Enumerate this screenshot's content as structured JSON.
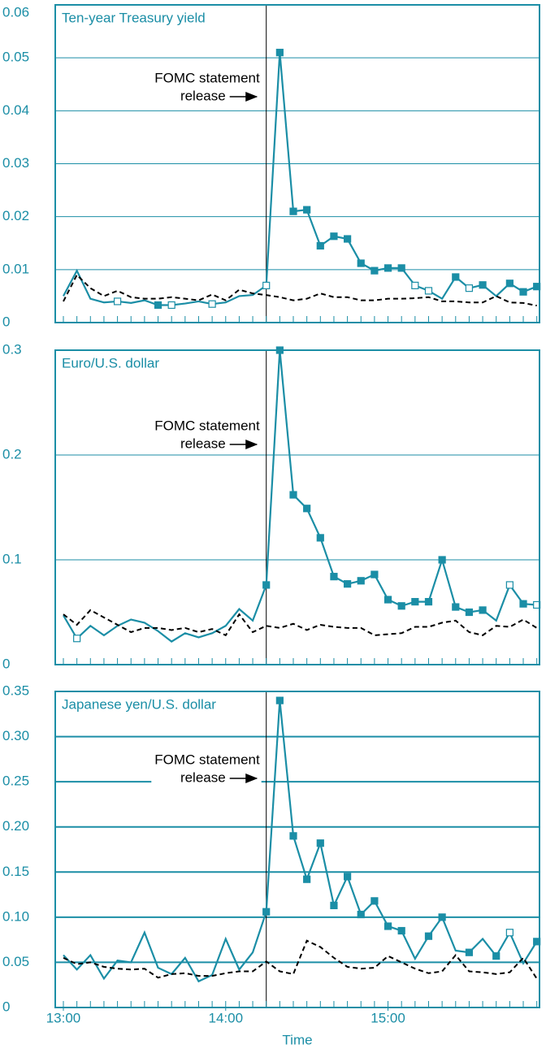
{
  "chart_data": [
    {
      "type": "line",
      "title": "Ten-year Treasury yield",
      "x": [
        "13:00",
        "13:05",
        "13:10",
        "13:15",
        "13:20",
        "13:25",
        "13:30",
        "13:35",
        "13:40",
        "13:45",
        "13:50",
        "13:55",
        "14:00",
        "14:05",
        "14:10",
        "14:15",
        "14:20",
        "14:25",
        "14:30",
        "14:35",
        "14:40",
        "14:45",
        "14:50",
        "14:55",
        "15:00",
        "15:05",
        "15:10",
        "15:15",
        "15:20",
        "15:25",
        "15:30",
        "15:35",
        "15:40",
        "15:45",
        "15:50",
        "15:55"
      ],
      "series": [
        {
          "color": "#1b8ea6",
          "values": [
            0.005,
            0.0098,
            0.0045,
            0.0038,
            0.004,
            0.0037,
            0.0042,
            0.0033,
            0.0033,
            0.0036,
            0.004,
            0.0035,
            0.0038,
            0.005,
            0.0052,
            0.007,
            0.051,
            0.021,
            0.0213,
            0.0145,
            0.0163,
            0.0158,
            0.0112,
            0.0098,
            0.0103,
            0.0103,
            0.007,
            0.006,
            0.0045,
            0.0086,
            0.0065,
            0.0071,
            0.005,
            0.0074,
            0.0058,
            0.0068
          ],
          "markers": [
            null,
            null,
            null,
            null,
            "hollow",
            null,
            null,
            "filled",
            "hollow",
            null,
            null,
            "hollow",
            null,
            null,
            null,
            "hollow",
            "filled",
            "filled",
            "filled",
            "filled",
            "filled",
            "filled",
            "filled",
            "filled",
            "filled",
            "filled",
            "hollow",
            "hollow",
            null,
            "filled",
            "hollow",
            "filled",
            null,
            "filled",
            "filled",
            "filled"
          ]
        },
        {
          "color": "#000000",
          "dashed": true,
          "values": [
            0.004,
            0.009,
            0.0065,
            0.005,
            0.006,
            0.0048,
            0.0045,
            0.0045,
            0.0048,
            0.0045,
            0.0042,
            0.0053,
            0.0042,
            0.0062,
            0.0055,
            0.0052,
            0.0048,
            0.0042,
            0.0045,
            0.0055,
            0.0048,
            0.0048,
            0.0042,
            0.0042,
            0.0045,
            0.0045,
            0.0046,
            0.0048,
            0.004,
            0.004,
            0.0038,
            0.0038,
            0.005,
            0.0038,
            0.0037,
            0.0032
          ]
        }
      ],
      "xlim": [
        "12:57",
        "15:56"
      ],
      "ylim": [
        0,
        0.06
      ],
      "yticks": [
        0,
        0.01,
        0.02,
        0.03,
        0.04,
        0.05,
        0.06
      ],
      "grid": true,
      "event_x": "14:15",
      "annotation": [
        "FOMC statement",
        "release"
      ]
    },
    {
      "type": "line",
      "title": "Euro/U.S. dollar",
      "x": [
        "13:00",
        "13:05",
        "13:10",
        "13:15",
        "13:20",
        "13:25",
        "13:30",
        "13:35",
        "13:40",
        "13:45",
        "13:50",
        "13:55",
        "14:00",
        "14:05",
        "14:10",
        "14:15",
        "14:20",
        "14:25",
        "14:30",
        "14:35",
        "14:40",
        "14:45",
        "14:50",
        "14:55",
        "15:00",
        "15:05",
        "15:10",
        "15:15",
        "15:20",
        "15:25",
        "15:30",
        "15:35",
        "15:40",
        "15:45",
        "15:50",
        "15:55"
      ],
      "series": [
        {
          "color": "#1b8ea6",
          "values": [
            0.047,
            0.025,
            0.037,
            0.028,
            0.037,
            0.043,
            0.04,
            0.032,
            0.022,
            0.03,
            0.026,
            0.03,
            0.037,
            0.053,
            0.042,
            0.076,
            0.3,
            0.162,
            0.149,
            0.121,
            0.084,
            0.077,
            0.08,
            0.086,
            0.062,
            0.056,
            0.06,
            0.06,
            0.1,
            0.055,
            0.05,
            0.052,
            0.042,
            0.076,
            0.058,
            0.057
          ],
          "markers": [
            null,
            "hollow",
            null,
            null,
            null,
            null,
            null,
            null,
            null,
            null,
            null,
            null,
            null,
            null,
            null,
            "filled",
            "filled",
            "filled",
            "filled",
            "filled",
            "filled",
            "filled",
            "filled",
            "filled",
            "filled",
            "filled",
            "filled",
            "filled",
            "filled",
            "filled",
            "filled",
            "filled",
            null,
            "hollow",
            "filled",
            "hollow"
          ]
        },
        {
          "color": "#000000",
          "dashed": true,
          "values": [
            0.048,
            0.038,
            0.052,
            0.045,
            0.038,
            0.031,
            0.035,
            0.035,
            0.033,
            0.035,
            0.031,
            0.034,
            0.028,
            0.048,
            0.031,
            0.037,
            0.035,
            0.039,
            0.033,
            0.038,
            0.036,
            0.035,
            0.035,
            0.028,
            0.029,
            0.03,
            0.036,
            0.036,
            0.04,
            0.042,
            0.031,
            0.028,
            0.037,
            0.036,
            0.043,
            0.035
          ]
        }
      ],
      "xlim": [
        "12:57",
        "15:56"
      ],
      "ylim": [
        0,
        0.3
      ],
      "yticks": [
        0,
        0.1,
        0.2,
        0.3
      ],
      "grid": true,
      "event_x": "14:15",
      "annotation": [
        "FOMC statement",
        "release"
      ]
    },
    {
      "type": "line",
      "title": "Japanese yen/U.S. dollar",
      "x": [
        "13:00",
        "13:05",
        "13:10",
        "13:15",
        "13:20",
        "13:25",
        "13:30",
        "13:35",
        "13:40",
        "13:45",
        "13:50",
        "13:55",
        "14:00",
        "14:05",
        "14:10",
        "14:15",
        "14:20",
        "14:25",
        "14:30",
        "14:35",
        "14:40",
        "14:45",
        "14:50",
        "14:55",
        "15:00",
        "15:05",
        "15:10",
        "15:15",
        "15:20",
        "15:25",
        "15:30",
        "15:35",
        "15:40",
        "15:45",
        "15:50",
        "15:55"
      ],
      "series": [
        {
          "color": "#1b8ea6",
          "values": [
            0.058,
            0.042,
            0.058,
            0.032,
            0.052,
            0.05,
            0.083,
            0.044,
            0.037,
            0.055,
            0.029,
            0.036,
            0.076,
            0.042,
            0.061,
            0.106,
            0.34,
            0.19,
            0.142,
            0.182,
            0.113,
            0.145,
            0.103,
            0.118,
            0.09,
            0.085,
            0.054,
            0.079,
            0.1,
            0.063,
            0.061,
            0.076,
            0.057,
            0.083,
            0.049,
            0.073
          ],
          "markers": [
            null,
            null,
            null,
            null,
            null,
            null,
            null,
            null,
            null,
            null,
            null,
            null,
            null,
            null,
            null,
            "filled",
            "filled",
            "filled",
            "filled",
            "filled",
            "filled",
            "filled",
            "filled",
            "filled",
            "filled",
            "filled",
            null,
            "filled",
            "filled",
            null,
            "filled",
            null,
            "filled",
            "hollow",
            null,
            "filled"
          ]
        },
        {
          "color": "#000000",
          "dashed": true,
          "values": [
            0.055,
            0.048,
            0.05,
            0.045,
            0.043,
            0.042,
            0.043,
            0.033,
            0.037,
            0.038,
            0.035,
            0.035,
            0.038,
            0.04,
            0.04,
            0.051,
            0.04,
            0.037,
            0.074,
            0.067,
            0.055,
            0.045,
            0.043,
            0.044,
            0.057,
            0.05,
            0.043,
            0.038,
            0.04,
            0.058,
            0.04,
            0.039,
            0.037,
            0.039,
            0.055,
            0.032
          ]
        }
      ],
      "xlim": [
        "12:57",
        "15:56"
      ],
      "ylim": [
        0,
        0.35
      ],
      "yticks": [
        0,
        0.05,
        {
          "value": 0.1,
          "label": "0.10"
        },
        0.15,
        {
          "value": 0.2,
          "label": "0.20"
        },
        0.25,
        {
          "value": 0.3,
          "label": "0.30"
        },
        0.35
      ],
      "grid": true,
      "xticks": [
        "13:00",
        "14:00",
        "15:00"
      ],
      "xlabel": "Time",
      "event_x": "14:15",
      "annotation": [
        "FOMC statement",
        "release"
      ]
    }
  ]
}
